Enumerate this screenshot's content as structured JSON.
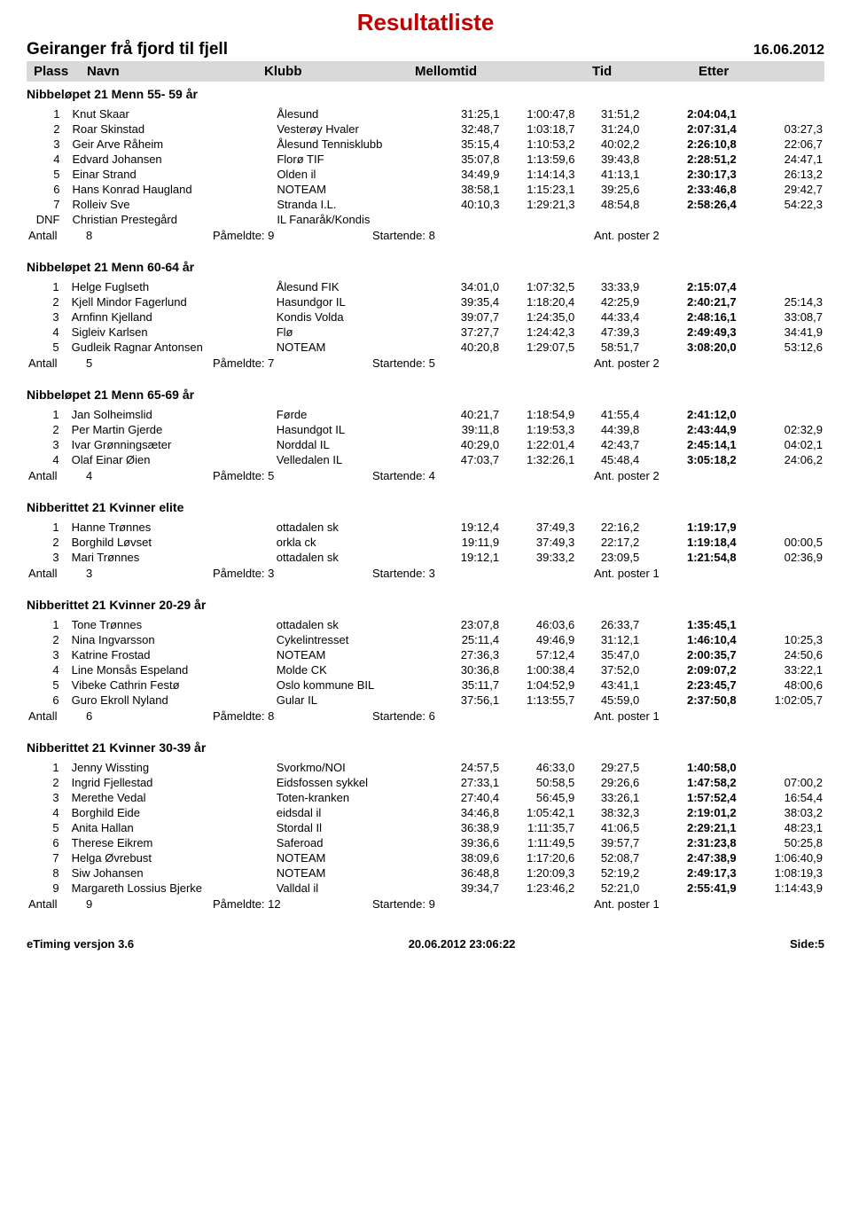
{
  "title": "Resultatliste",
  "event_name": "Geiranger frå fjord til fjell",
  "event_date": "16.06.2012",
  "columns": {
    "plass": "Plass",
    "navn": "Navn",
    "klubb": "Klubb",
    "mellomtid": "Mellomtid",
    "tid": "Tid",
    "etter": "Etter"
  },
  "labels": {
    "antall": "Antall",
    "pameldte": "Påmeldte:",
    "startende": "Startende:",
    "poster": "Ant. poster"
  },
  "colors": {
    "title": "#c00000",
    "header_bg": "#d9d9d9",
    "text": "#000000",
    "bg": "#ffffff"
  },
  "typography": {
    "base_family": "Arial",
    "base_size_pt": 10,
    "title_size_pt": 20,
    "sec_title_size_pt": 11,
    "sec_title_weight": "bold"
  },
  "sections": [
    {
      "title": "Nibbeløpet 21 Menn 55- 59 år",
      "rows": [
        {
          "pl": "1",
          "nv": "Knut Skaar",
          "kl": "Ålesund",
          "m1": "31:25,1",
          "m2": "1:00:47,8",
          "m3": "31:51,2",
          "ti": "2:04:04,1",
          "et": ""
        },
        {
          "pl": "2",
          "nv": "Roar Skinstad",
          "kl": "Vesterøy Hvaler",
          "m1": "32:48,7",
          "m2": "1:03:18,7",
          "m3": "31:24,0",
          "ti": "2:07:31,4",
          "et": "03:27,3"
        },
        {
          "pl": "3",
          "nv": "Geir Arve Råheim",
          "kl": "Ålesund Tennisklubb",
          "m1": "35:15,4",
          "m2": "1:10:53,2",
          "m3": "40:02,2",
          "ti": "2:26:10,8",
          "et": "22:06,7"
        },
        {
          "pl": "4",
          "nv": "Edvard Johansen",
          "kl": "Florø TIF",
          "m1": "35:07,8",
          "m2": "1:13:59,6",
          "m3": "39:43,8",
          "ti": "2:28:51,2",
          "et": "24:47,1"
        },
        {
          "pl": "5",
          "nv": "Einar Strand",
          "kl": "Olden il",
          "m1": "34:49,9",
          "m2": "1:14:14,3",
          "m3": "41:13,1",
          "ti": "2:30:17,3",
          "et": "26:13,2"
        },
        {
          "pl": "6",
          "nv": "Hans Konrad Haugland",
          "kl": "NOTEAM",
          "m1": "38:58,1",
          "m2": "1:15:23,1",
          "m3": "39:25,6",
          "ti": "2:33:46,8",
          "et": "29:42,7"
        },
        {
          "pl": "7",
          "nv": "Rolleiv Sve",
          "kl": "Stranda I.L.",
          "m1": "40:10,3",
          "m2": "1:29:21,3",
          "m3": "48:54,8",
          "ti": "2:58:26,4",
          "et": "54:22,3"
        },
        {
          "pl": "DNF",
          "nv": "Christian Prestegård",
          "kl": "IL Fanaråk/Kondis",
          "m1": "",
          "m2": "",
          "m3": "",
          "ti": "",
          "et": ""
        }
      ],
      "antall": "8",
      "pameldte": "9",
      "startende": "8",
      "poster": "2"
    },
    {
      "title": "Nibbeløpet 21 Menn 60-64 år",
      "rows": [
        {
          "pl": "1",
          "nv": "Helge Fuglseth",
          "kl": "Ålesund FIK",
          "m1": "34:01,0",
          "m2": "1:07:32,5",
          "m3": "33:33,9",
          "ti": "2:15:07,4",
          "et": ""
        },
        {
          "pl": "2",
          "nv": "Kjell Mindor Fagerlund",
          "kl": "Hasundgor IL",
          "m1": "39:35,4",
          "m2": "1:18:20,4",
          "m3": "42:25,9",
          "ti": "2:40:21,7",
          "et": "25:14,3"
        },
        {
          "pl": "3",
          "nv": "Arnfinn Kjelland",
          "kl": "Kondis Volda",
          "m1": "39:07,7",
          "m2": "1:24:35,0",
          "m3": "44:33,4",
          "ti": "2:48:16,1",
          "et": "33:08,7"
        },
        {
          "pl": "4",
          "nv": "Sigleiv Karlsen",
          "kl": "Flø",
          "m1": "37:27,7",
          "m2": "1:24:42,3",
          "m3": "47:39,3",
          "ti": "2:49:49,3",
          "et": "34:41,9"
        },
        {
          "pl": "5",
          "nv": "Gudleik Ragnar Antonsen",
          "kl": "NOTEAM",
          "m1": "40:20,8",
          "m2": "1:29:07,5",
          "m3": "58:51,7",
          "ti": "3:08:20,0",
          "et": "53:12,6"
        }
      ],
      "antall": "5",
      "pameldte": "7",
      "startende": "5",
      "poster": "2"
    },
    {
      "title": "Nibbeløpet 21 Menn 65-69 år",
      "rows": [
        {
          "pl": "1",
          "nv": "Jan Solheimslid",
          "kl": "Førde",
          "m1": "40:21,7",
          "m2": "1:18:54,9",
          "m3": "41:55,4",
          "ti": "2:41:12,0",
          "et": ""
        },
        {
          "pl": "2",
          "nv": "Per Martin Gjerde",
          "kl": "Hasundgot IL",
          "m1": "39:11,8",
          "m2": "1:19:53,3",
          "m3": "44:39,8",
          "ti": "2:43:44,9",
          "et": "02:32,9"
        },
        {
          "pl": "3",
          "nv": "Ivar Grønningsæter",
          "kl": "Norddal IL",
          "m1": "40:29,0",
          "m2": "1:22:01,4",
          "m3": "42:43,7",
          "ti": "2:45:14,1",
          "et": "04:02,1"
        },
        {
          "pl": "4",
          "nv": "Olaf Einar Øien",
          "kl": "Velledalen IL",
          "m1": "47:03,7",
          "m2": "1:32:26,1",
          "m3": "45:48,4",
          "ti": "3:05:18,2",
          "et": "24:06,2"
        }
      ],
      "antall": "4",
      "pameldte": "5",
      "startende": "4",
      "poster": "2"
    },
    {
      "title": "Nibberittet 21 Kvinner  elite",
      "rows": [
        {
          "pl": "1",
          "nv": "Hanne Trønnes",
          "kl": "ottadalen sk",
          "m1": "19:12,4",
          "m2": "37:49,3",
          "m3": "22:16,2",
          "ti": "1:19:17,9",
          "et": ""
        },
        {
          "pl": "2",
          "nv": "Borghild Løvset",
          "kl": "orkla ck",
          "m1": "19:11,9",
          "m2": "37:49,3",
          "m3": "22:17,2",
          "ti": "1:19:18,4",
          "et": "00:00,5"
        },
        {
          "pl": "3",
          "nv": "Mari Trønnes",
          "kl": "ottadalen sk",
          "m1": "19:12,1",
          "m2": "39:33,2",
          "m3": "23:09,5",
          "ti": "1:21:54,8",
          "et": "02:36,9"
        }
      ],
      "antall": "3",
      "pameldte": "3",
      "startende": "3",
      "poster": "1"
    },
    {
      "title": "Nibberittet 21 Kvinner 20-29 år",
      "rows": [
        {
          "pl": "1",
          "nv": "Tone Trønnes",
          "kl": "ottadalen sk",
          "m1": "23:07,8",
          "m2": "46:03,6",
          "m3": "26:33,7",
          "ti": "1:35:45,1",
          "et": ""
        },
        {
          "pl": "2",
          "nv": "Nina Ingvarsson",
          "kl": "Cykelintresset",
          "m1": "25:11,4",
          "m2": "49:46,9",
          "m3": "31:12,1",
          "ti": "1:46:10,4",
          "et": "10:25,3"
        },
        {
          "pl": "3",
          "nv": "Katrine Frostad",
          "kl": "NOTEAM",
          "m1": "27:36,3",
          "m2": "57:12,4",
          "m3": "35:47,0",
          "ti": "2:00:35,7",
          "et": "24:50,6"
        },
        {
          "pl": "4",
          "nv": "Line Monsås Espeland",
          "kl": "Molde CK",
          "m1": "30:36,8",
          "m2": "1:00:38,4",
          "m3": "37:52,0",
          "ti": "2:09:07,2",
          "et": "33:22,1"
        },
        {
          "pl": "5",
          "nv": "Vibeke Cathrin Festø",
          "kl": "Oslo kommune BIL",
          "m1": "35:11,7",
          "m2": "1:04:52,9",
          "m3": "43:41,1",
          "ti": "2:23:45,7",
          "et": "48:00,6"
        },
        {
          "pl": "6",
          "nv": "Guro Ekroll Nyland",
          "kl": "Gular IL",
          "m1": "37:56,1",
          "m2": "1:13:55,7",
          "m3": "45:59,0",
          "ti": "2:37:50,8",
          "et": "1:02:05,7"
        }
      ],
      "antall": "6",
      "pameldte": "8",
      "startende": "6",
      "poster": "1"
    },
    {
      "title": "Nibberittet 21 Kvinner 30-39 år",
      "rows": [
        {
          "pl": "1",
          "nv": "Jenny Wissting",
          "kl": "Svorkmo/NOI",
          "m1": "24:57,5",
          "m2": "46:33,0",
          "m3": "29:27,5",
          "ti": "1:40:58,0",
          "et": ""
        },
        {
          "pl": "2",
          "nv": "Ingrid Fjellestad",
          "kl": "Eidsfossen sykkel",
          "m1": "27:33,1",
          "m2": "50:58,5",
          "m3": "29:26,6",
          "ti": "1:47:58,2",
          "et": "07:00,2"
        },
        {
          "pl": "3",
          "nv": "Merethe Vedal",
          "kl": "Toten-kranken",
          "m1": "27:40,4",
          "m2": "56:45,9",
          "m3": "33:26,1",
          "ti": "1:57:52,4",
          "et": "16:54,4"
        },
        {
          "pl": "4",
          "nv": "Borghild Eide",
          "kl": "eidsdal il",
          "m1": "34:46,8",
          "m2": "1:05:42,1",
          "m3": "38:32,3",
          "ti": "2:19:01,2",
          "et": "38:03,2"
        },
        {
          "pl": "5",
          "nv": "Anita Hallan",
          "kl": "Stordal Il",
          "m1": "36:38,9",
          "m2": "1:11:35,7",
          "m3": "41:06,5",
          "ti": "2:29:21,1",
          "et": "48:23,1"
        },
        {
          "pl": "6",
          "nv": "Therese Eikrem",
          "kl": "Saferoad",
          "m1": "39:36,6",
          "m2": "1:11:49,5",
          "m3": "39:57,7",
          "ti": "2:31:23,8",
          "et": "50:25,8"
        },
        {
          "pl": "7",
          "nv": "Helga Øvrebust",
          "kl": "NOTEAM",
          "m1": "38:09,6",
          "m2": "1:17:20,6",
          "m3": "52:08,7",
          "ti": "2:47:38,9",
          "et": "1:06:40,9"
        },
        {
          "pl": "8",
          "nv": "Siw Johansen",
          "kl": "NOTEAM",
          "m1": "36:48,8",
          "m2": "1:20:09,3",
          "m3": "52:19,2",
          "ti": "2:49:17,3",
          "et": "1:08:19,3"
        },
        {
          "pl": "9",
          "nv": "Margareth Lossius Bjerke",
          "kl": "Valldal il",
          "m1": "39:34,7",
          "m2": "1:23:46,2",
          "m3": "52:21,0",
          "ti": "2:55:41,9",
          "et": "1:14:43,9"
        }
      ],
      "antall": "9",
      "pameldte": "12",
      "startende": "9",
      "poster": "1"
    }
  ],
  "footer": {
    "left": "eTiming versjon 3.6",
    "center": "20.06.2012 23:06:22",
    "right": "Side:5"
  }
}
